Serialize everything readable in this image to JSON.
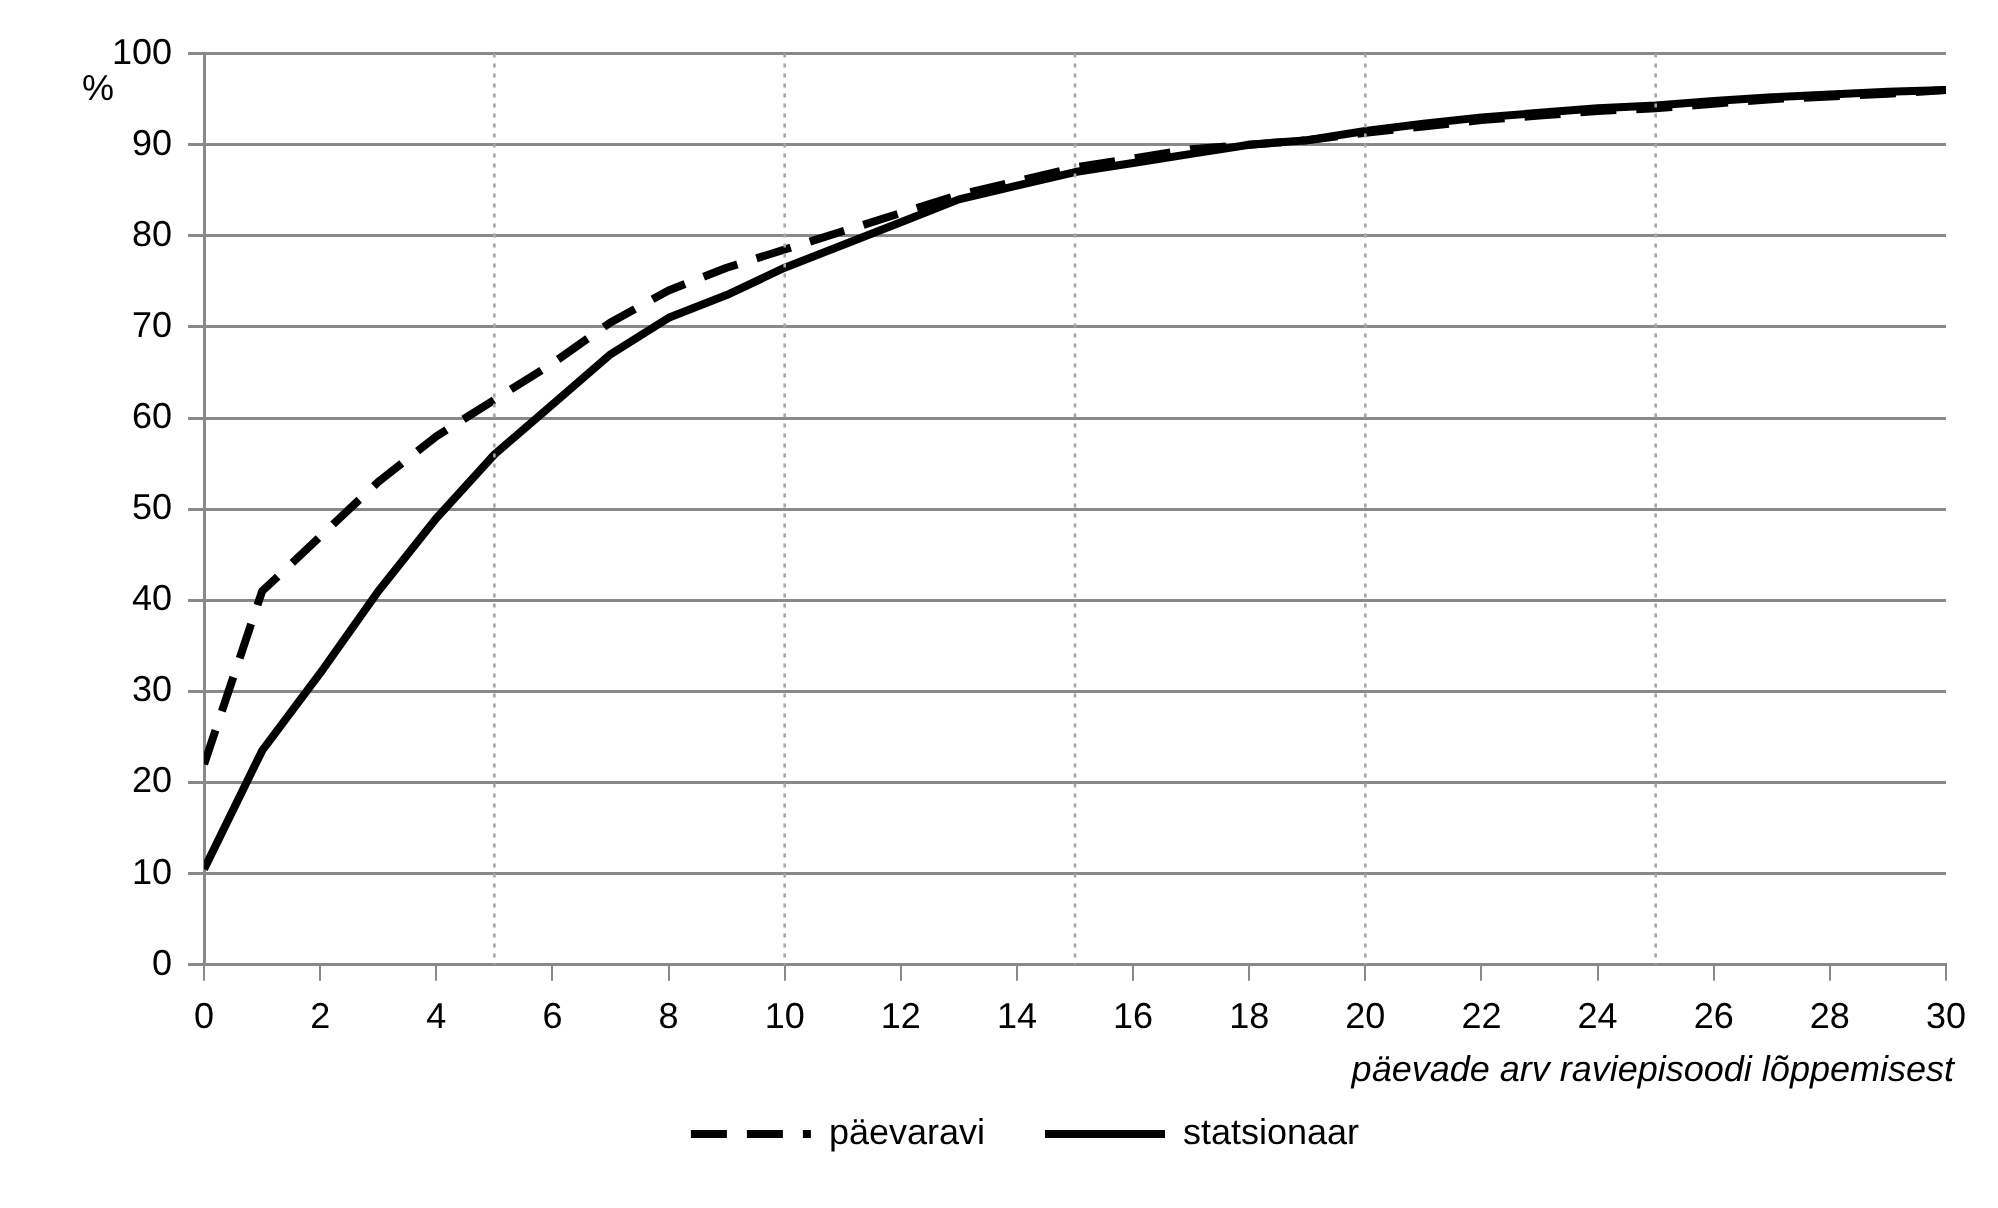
{
  "chart_data": {
    "type": "line",
    "ylabel": "%",
    "xlabel": "päevade arv raviepisoodi lõppemisest",
    "x": [
      0,
      1,
      2,
      3,
      4,
      5,
      6,
      7,
      8,
      9,
      10,
      11,
      12,
      13,
      14,
      15,
      16,
      17,
      18,
      19,
      20,
      21,
      22,
      23,
      24,
      25,
      26,
      27,
      28,
      29,
      30
    ],
    "series": [
      {
        "name": "päevaravi",
        "color": "#000000",
        "line_style": "dashed",
        "values": [
          22,
          41,
          47,
          53,
          58,
          62,
          66,
          70.5,
          74,
          76.5,
          78.5,
          80.5,
          82.5,
          84.5,
          86,
          87.5,
          88.5,
          89.5,
          90,
          90.5,
          91.3,
          92,
          92.7,
          93.2,
          93.7,
          94,
          94.5,
          95,
          95.3,
          95.6,
          96
        ]
      },
      {
        "name": "statsionaar",
        "color": "#000000",
        "line_style": "solid",
        "values": [
          10.5,
          23.5,
          32,
          41,
          49,
          56,
          61.5,
          67,
          71,
          73.5,
          76.5,
          79,
          81.5,
          84,
          85.5,
          87,
          88,
          89,
          90,
          90.5,
          91.5,
          92.3,
          93,
          93.5,
          94,
          94.3,
          94.8,
          95.2,
          95.5,
          95.8,
          96
        ]
      }
    ],
    "xlim": [
      0,
      30
    ],
    "xticks": [
      0,
      2,
      4,
      6,
      8,
      10,
      12,
      14,
      16,
      18,
      20,
      22,
      24,
      26,
      28,
      30
    ],
    "ylim": [
      0,
      100
    ],
    "yticks": [
      0,
      10,
      20,
      30,
      40,
      50,
      60,
      70,
      80,
      90,
      100
    ],
    "grid": "y",
    "legend": "bottom",
    "marker": "none",
    "ref_lines": [
      {
        "axis": "x",
        "value": 5,
        "line_style": "dotted",
        "color": "#a6a6a6"
      },
      {
        "axis": "x",
        "value": 10,
        "line_style": "dotted",
        "color": "#a6a6a6"
      },
      {
        "axis": "x",
        "value": 15,
        "line_style": "dotted",
        "color": "#a6a6a6"
      },
      {
        "axis": "x",
        "value": 20,
        "line_style": "dotted",
        "color": "#a6a6a6"
      },
      {
        "axis": "x",
        "value": 25,
        "line_style": "dotted",
        "color": "#a6a6a6"
      }
    ]
  }
}
